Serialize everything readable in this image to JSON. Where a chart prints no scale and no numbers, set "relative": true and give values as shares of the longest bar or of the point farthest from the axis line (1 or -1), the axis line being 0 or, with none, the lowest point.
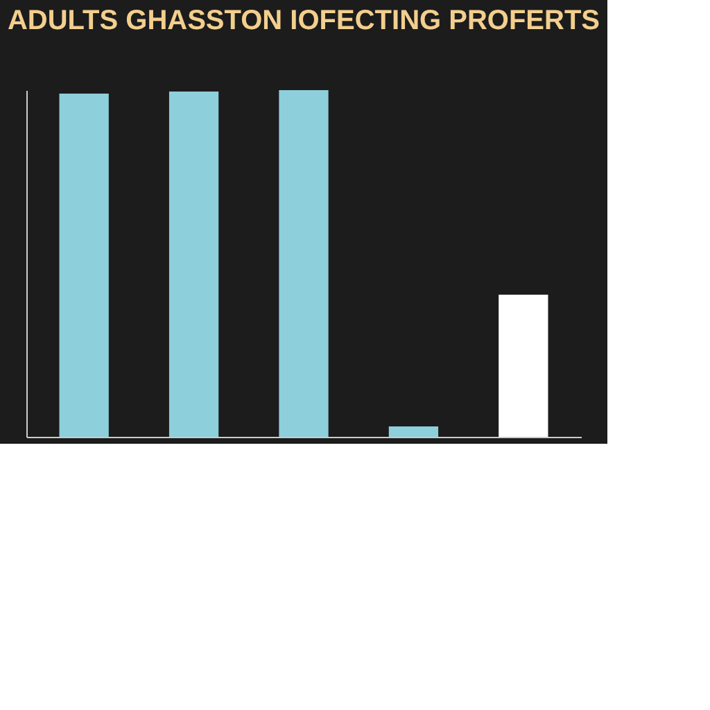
{
  "chart_data": {
    "type": "bar",
    "title": "ADULTS GHASSTON IOFECTING PROFERTS",
    "relative": true,
    "categories": [
      null,
      null,
      null,
      null,
      null
    ],
    "values": [
      0.99,
      0.996,
      1,
      0.03,
      0.41
    ],
    "colors": [
      "#8ecfdc",
      "#8ecfdc",
      "#8ecfdc",
      "#8ecfdc",
      "#ffffff"
    ],
    "grid": false,
    "tick_labels": false
  }
}
